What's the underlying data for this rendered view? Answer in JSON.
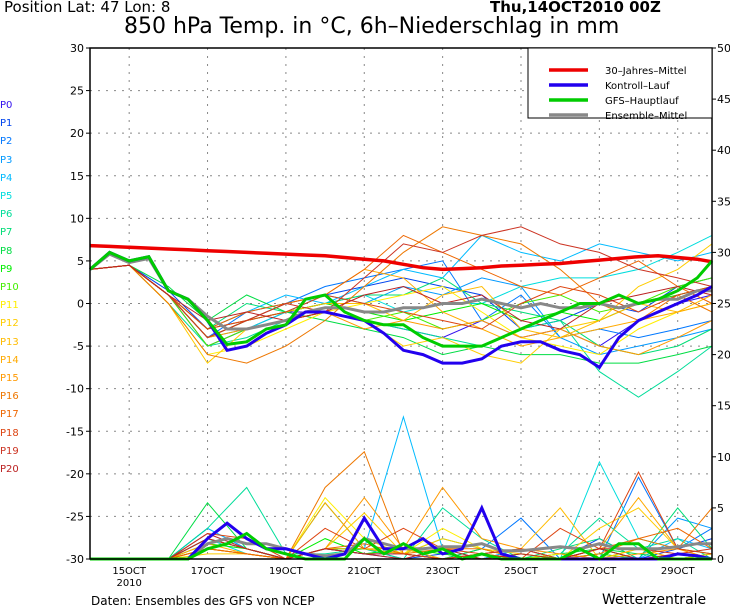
{
  "header": {
    "position": "Position   Lat: 47  Lon: 8",
    "date": "Thu,14OCT2010  00Z",
    "title": "850 hPa Temp. in °C, 6h–Niederschlag in mm"
  },
  "footer": {
    "source": "Daten: Ensembles des GFS von NCEP",
    "brand": "Wetterzentrale"
  },
  "chart_data": {
    "type": "line",
    "title": "850 hPa Temp. in °C, 6h–Niederschlag in mm",
    "y_left": {
      "ylim": [
        -30,
        30
      ],
      "ticks": [
        "30",
        "25",
        "20",
        "15",
        "10",
        "5",
        "0",
        "-5",
        "-10",
        "-15",
        "-20",
        "-25",
        "-30"
      ]
    },
    "y_right": {
      "ylim": [
        0,
        50
      ],
      "ticks": [
        "50",
        "45",
        "40",
        "35",
        "30",
        "25",
        "20",
        "15",
        "10",
        "5",
        "0"
      ]
    },
    "x_axis": {
      "unit": "hours after 14OCT2010 00Z",
      "xlim": [
        0,
        381
      ],
      "ticks": [
        {
          "h": 24,
          "label": "15OCT",
          "sub": "2010"
        },
        {
          "h": 72,
          "label": "17OCT"
        },
        {
          "h": 120,
          "label": "19OCT"
        },
        {
          "h": 168,
          "label": "21OCT"
        },
        {
          "h": 216,
          "label": "23OCT"
        },
        {
          "h": 264,
          "label": "25OCT"
        },
        {
          "h": 312,
          "label": "27OCT"
        },
        {
          "h": 360,
          "label": "29OCT"
        }
      ]
    },
    "grid": true,
    "legend_position": "top-right",
    "legend": [
      {
        "label": "30–Jahres–Mittel",
        "color": "#ee0000"
      },
      {
        "label": "Kontroll–Lauf",
        "color": "#2200ee"
      },
      {
        "label": "GFS–Hauptlauf",
        "color": "#00cc00"
      },
      {
        "label": "Ensemble–Mittel",
        "color": "#888888"
      }
    ],
    "x_main": [
      0,
      12,
      24,
      36,
      48,
      60,
      72,
      84,
      96,
      108,
      120,
      132,
      144,
      156,
      168,
      180,
      192,
      204,
      216,
      228,
      240,
      252,
      264,
      276,
      288,
      300,
      312,
      324,
      336,
      348,
      360,
      372,
      381
    ],
    "climate_mean_temp": [
      6.8,
      6.7,
      6.6,
      6.5,
      6.4,
      6.3,
      6.2,
      6.1,
      6.0,
      5.9,
      5.8,
      5.7,
      5.6,
      5.4,
      5.2,
      5.0,
      4.6,
      4.2,
      4.0,
      4.1,
      4.2,
      4.4,
      4.5,
      4.6,
      4.7,
      4.9,
      5.1,
      5.3,
      5.5,
      5.6,
      5.4,
      5.2,
      4.9
    ],
    "control_temp": [
      4,
      6,
      5,
      5.5,
      1.5,
      0.5,
      -2,
      -5.5,
      -5,
      -3.5,
      -2.5,
      -1,
      -1,
      -1.5,
      -2,
      -3.5,
      -5.5,
      -6,
      -7,
      -7,
      -6.5,
      -5,
      -4.5,
      -4.5,
      -5.5,
      -6,
      -7.5,
      -4,
      -2,
      -1,
      0,
      1,
      2
    ],
    "gfs_temp": [
      4,
      6,
      5,
      5.5,
      1.5,
      0.5,
      -2,
      -4.8,
      -4.5,
      -3,
      -2.5,
      0.5,
      1,
      -1,
      -2,
      -2.5,
      -2.5,
      -4,
      -5,
      -5,
      -5,
      -4,
      -3,
      -2,
      -1,
      0,
      0,
      1,
      0,
      0.5,
      1.5,
      3,
      5
    ],
    "ensemble_mean_temp": [
      4,
      5.8,
      4.8,
      5.3,
      1.5,
      0.5,
      -1.5,
      -3,
      -3,
      -2.5,
      -2,
      -1,
      -0.5,
      -0.5,
      -1,
      -1,
      -0.5,
      -0.5,
      0,
      0,
      0.5,
      0,
      -0.5,
      0,
      -0.5,
      -0.5,
      0,
      -0.5,
      0,
      0.5,
      0.5,
      1.5,
      1.5
    ],
    "control_precip": [
      0,
      0,
      0,
      0,
      0,
      0,
      2,
      3.5,
      2,
      1,
      1,
      0.5,
      0,
      0.5,
      4,
      1,
      1,
      2,
      0.5,
      1,
      5,
      0.5,
      0,
      0,
      0,
      0,
      0,
      0,
      0,
      0,
      0.5,
      0.3,
      0
    ],
    "gfs_precip": [
      0,
      0,
      0,
      0,
      0,
      0,
      1,
      1.5,
      2.5,
      1,
      0.5,
      0,
      0,
      0,
      2,
      0.5,
      1.5,
      0.5,
      1,
      0,
      0.5,
      0,
      0,
      0,
      0,
      1,
      0,
      1.5,
      1.5,
      0,
      0,
      0,
      0
    ],
    "ensemble_mean_precip": [
      0,
      0,
      0,
      0,
      0,
      0,
      1.5,
      2,
      1.5,
      1.5,
      1,
      0.5,
      0.3,
      0.5,
      2,
      1.5,
      1,
      1,
      1.2,
      1.2,
      1.5,
      0.8,
      0.8,
      1,
      1.2,
      1,
      1.5,
      1,
      1,
      1,
      1.2,
      1.5,
      1.5
    ],
    "x_members": [
      0,
      24,
      48,
      72,
      96,
      120,
      144,
      168,
      192,
      216,
      240,
      264,
      288,
      312,
      336,
      360,
      381
    ],
    "members": [
      {
        "name": "P0",
        "color": "#3311ee",
        "temp": [
          4,
          4.5,
          1,
          -5,
          -3,
          -1,
          -1,
          -2,
          -3,
          -4,
          -2,
          -4,
          -3,
          -5,
          -2,
          0,
          1
        ],
        "precip": [
          0,
          0,
          0,
          2,
          1,
          0,
          1,
          0.5,
          0.5,
          0,
          0,
          0,
          0,
          0,
          0,
          0,
          0
        ]
      },
      {
        "name": "P1",
        "color": "#0044ee",
        "temp": [
          4,
          4.5,
          1.5,
          -3,
          -2,
          0,
          1,
          2,
          3,
          2,
          1,
          -3,
          -2,
          0,
          -1,
          2,
          3
        ],
        "precip": [
          0,
          0,
          0,
          2.5,
          1,
          0,
          1,
          1,
          0,
          0.5,
          0,
          1,
          0,
          2,
          0,
          1,
          2
        ]
      },
      {
        "name": "P2",
        "color": "#0077ff",
        "temp": [
          4,
          4.5,
          1,
          -4,
          -1,
          0,
          2,
          3,
          4,
          5,
          -2,
          1,
          -4,
          -3,
          -4,
          -3,
          -2
        ],
        "precip": [
          0,
          0,
          0,
          3,
          1,
          0,
          1,
          0.5,
          0,
          0,
          1,
          4,
          0,
          0,
          8,
          1,
          3
        ]
      },
      {
        "name": "P3",
        "color": "#0099ff",
        "temp": [
          4,
          4.5,
          1,
          -4,
          -2,
          -1,
          1,
          0,
          2,
          1,
          3,
          2,
          -4,
          -6,
          -5,
          -4,
          -3
        ],
        "precip": [
          0,
          0,
          0,
          2,
          1,
          0,
          1,
          1,
          0.5,
          0,
          0.5,
          1,
          0,
          1,
          0,
          4,
          3
        ]
      },
      {
        "name": "P4",
        "color": "#00bbff",
        "temp": [
          4,
          4.5,
          1,
          -3,
          -1,
          1,
          0,
          2,
          4,
          3,
          8,
          6,
          5,
          7,
          6,
          5,
          6
        ],
        "precip": [
          0,
          0,
          0,
          3,
          1,
          0,
          1,
          1,
          13.9,
          1,
          0,
          1,
          0,
          0.5,
          0,
          2,
          1
        ]
      },
      {
        "name": "P5",
        "color": "#00dddd",
        "temp": [
          4,
          4.5,
          1,
          -4,
          -3,
          -1,
          0,
          1,
          -1,
          0,
          0,
          2,
          3,
          3,
          4,
          6,
          8
        ],
        "precip": [
          0,
          0,
          0,
          2,
          0.5,
          0,
          1,
          0.5,
          1,
          0,
          0.5,
          1,
          0,
          9.5,
          2,
          1,
          0.5
        ]
      },
      {
        "name": "P6",
        "color": "#00dd99",
        "temp": [
          4,
          4.5,
          0,
          -5,
          -4,
          -2,
          -1,
          -2,
          -3,
          -4,
          -5,
          -3,
          -2,
          -8,
          -11,
          -8,
          -5
        ],
        "precip": [
          0,
          0,
          0,
          3,
          7,
          0.5,
          0.5,
          1,
          0,
          5,
          2,
          0,
          0.5,
          4,
          1,
          2,
          0
        ]
      },
      {
        "name": "P7",
        "color": "#00dd77",
        "temp": [
          4,
          4.5,
          1,
          -3,
          0,
          -1,
          0,
          1,
          1,
          3,
          0,
          -1,
          -2,
          -5,
          -6,
          -5,
          -3
        ],
        "precip": [
          0,
          0,
          0,
          2,
          1,
          0,
          1,
          1,
          0.5,
          2,
          1,
          0,
          1,
          2,
          0,
          5,
          1
        ]
      },
      {
        "name": "P8",
        "color": "#00dd44",
        "temp": [
          4,
          4.5,
          2,
          -2,
          1,
          -1,
          -2,
          -3,
          -4,
          -6,
          -5,
          -6,
          -6,
          -7,
          -7,
          -6,
          -5
        ],
        "precip": [
          0,
          0,
          0,
          5.5,
          1,
          0,
          5.5,
          1,
          0.5,
          0,
          1,
          0,
          0.5,
          1,
          0.5,
          0,
          0.5
        ]
      },
      {
        "name": "P9",
        "color": "#00ee00",
        "temp": [
          4,
          4.5,
          1,
          -4,
          -2,
          -1,
          0,
          -1,
          -2,
          -1,
          0,
          -2,
          -1,
          -2,
          0,
          1,
          2
        ],
        "precip": [
          0,
          0,
          0,
          1.5,
          1,
          0,
          2,
          0.5,
          1,
          0.5,
          0,
          0.5,
          0,
          1,
          0,
          0,
          0
        ]
      },
      {
        "name": "P10",
        "color": "#44ee00",
        "temp": [
          4,
          4.5,
          1,
          -5,
          -3,
          -2,
          -1,
          -2,
          -1,
          -3,
          -2,
          0,
          1,
          -1,
          0,
          2,
          3
        ],
        "precip": [
          0,
          0,
          0,
          1,
          0.5,
          0,
          1,
          1,
          0.5,
          0,
          0.5,
          0,
          0,
          0.5,
          0,
          0,
          0.5
        ]
      },
      {
        "name": "P11",
        "color": "#ffee00",
        "temp": [
          4,
          4.5,
          0,
          -6,
          -5,
          -3,
          -1,
          0,
          1,
          2,
          -1,
          -4,
          -5,
          -6,
          -3,
          -1,
          0
        ],
        "precip": [
          0,
          0,
          0,
          1,
          0.5,
          0,
          6,
          2,
          0.5,
          3,
          1,
          0,
          0.5,
          0,
          1,
          0,
          0
        ]
      },
      {
        "name": "P12",
        "color": "#ffcc00",
        "temp": [
          4,
          4.5,
          0,
          -7,
          -3,
          -2,
          -1,
          -2,
          -5,
          -4,
          -6,
          -7,
          -3,
          -2,
          2,
          4,
          7
        ],
        "precip": [
          0,
          0,
          0,
          0.5,
          0.5,
          0,
          1,
          4.5,
          0.5,
          2,
          1,
          0.5,
          0,
          3,
          5,
          1,
          0.5
        ]
      },
      {
        "name": "P13",
        "color": "#ffbb00",
        "temp": [
          4,
          4.5,
          1,
          -3,
          -2,
          -1,
          0,
          0,
          -2,
          1,
          2,
          -3,
          -4,
          -2,
          0,
          -1,
          1
        ],
        "precip": [
          0,
          0,
          0,
          1,
          0.5,
          0,
          1,
          1,
          1,
          0,
          0.5,
          1,
          5,
          0,
          1,
          0,
          0.5
        ]
      },
      {
        "name": "P14",
        "color": "#ffaa00",
        "temp": [
          4,
          4.5,
          1,
          -4,
          -2,
          0,
          1,
          4,
          3,
          -1,
          -3,
          -5,
          -4,
          -3,
          -2,
          -1,
          0
        ],
        "precip": [
          0,
          0,
          0,
          1.5,
          0.5,
          0,
          5.5,
          1,
          0.5,
          0,
          0.5,
          0,
          0,
          1,
          6,
          1,
          0
        ]
      },
      {
        "name": "P15",
        "color": "#ff9900",
        "temp": [
          4,
          4.5,
          1,
          -4,
          -3,
          -2,
          -1,
          -3,
          -2,
          -3,
          -2,
          -4,
          -3,
          -5,
          -6,
          -4,
          -2
        ],
        "precip": [
          0,
          0,
          0,
          2,
          1,
          0,
          1,
          6,
          1,
          7,
          2,
          1,
          0.5,
          0,
          0.5,
          1,
          0
        ]
      },
      {
        "name": "P16",
        "color": "#ee7700",
        "temp": [
          4,
          4.5,
          0,
          -6,
          -7,
          -5,
          -2,
          2,
          6,
          9,
          8,
          7,
          4,
          0,
          -2,
          1,
          -1
        ],
        "precip": [
          0,
          0,
          0,
          1,
          0.5,
          0,
          7,
          10.5,
          0.5,
          1,
          1,
          0,
          0,
          0.5,
          2,
          1,
          5
        ]
      },
      {
        "name": "P17",
        "color": "#ee6600",
        "temp": [
          4,
          4.5,
          1,
          -3,
          -1,
          0,
          1,
          4,
          8,
          6,
          4,
          2,
          1,
          3,
          5,
          2,
          0
        ],
        "precip": [
          0,
          0,
          0,
          1,
          0.5,
          0,
          1,
          1.5,
          0.5,
          0,
          0.5,
          1,
          0,
          1,
          2,
          3,
          1
        ]
      },
      {
        "name": "P18",
        "color": "#dd4411",
        "temp": [
          4,
          4.5,
          1,
          -3,
          -2,
          -1,
          1,
          0,
          -1,
          -2,
          -3,
          0,
          2,
          1,
          -1,
          1,
          2
        ],
        "precip": [
          0,
          0,
          0,
          2.5,
          2,
          0,
          3,
          1,
          3,
          1,
          0.5,
          0,
          3,
          1,
          8.5,
          1,
          0.5
        ]
      },
      {
        "name": "P19",
        "color": "#cc3322",
        "temp": [
          4,
          4.5,
          1,
          -4,
          -2,
          0,
          -1,
          3,
          7,
          6,
          8,
          9,
          7,
          6,
          4,
          3,
          2
        ],
        "precip": [
          0,
          0,
          0,
          2.5,
          1,
          0,
          1,
          0.5,
          0.5,
          0,
          0.5,
          1,
          0,
          1,
          1,
          0.5,
          1
        ]
      },
      {
        "name": "P20",
        "color": "#bb2222",
        "temp": [
          4,
          4.5,
          1,
          -2,
          -1,
          -2,
          -1,
          1,
          2,
          0,
          1,
          -2,
          -3,
          0,
          1,
          2,
          1
        ],
        "precip": [
          0,
          0,
          0,
          2,
          1,
          0,
          1,
          0.5,
          0,
          1,
          0,
          0.5,
          0,
          1,
          0,
          0.5,
          0
        ]
      }
    ]
  }
}
